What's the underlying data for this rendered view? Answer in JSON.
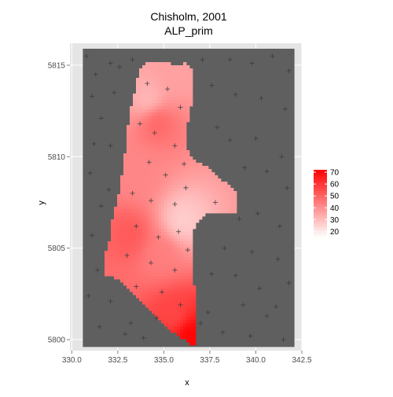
{
  "chart_data": {
    "type": "heatmap",
    "title": "Chisholm, 2001",
    "subtitle": "ALP_prim",
    "xlabel": "x",
    "ylabel": "y",
    "xlim": [
      329.9,
      342.5
    ],
    "ylim": [
      5799.4,
      5816.2
    ],
    "x_ticks": [
      {
        "value": 330.0,
        "label": "330.0"
      },
      {
        "value": 332.5,
        "label": "332.5"
      },
      {
        "value": 335.0,
        "label": "335.0"
      },
      {
        "value": 337.5,
        "label": "337.5"
      },
      {
        "value": 340.0,
        "label": "340.0"
      },
      {
        "value": 342.5,
        "label": "342.5"
      }
    ],
    "y_ticks": [
      {
        "value": 5800,
        "label": "5800"
      },
      {
        "value": 5805,
        "label": "5805"
      },
      {
        "value": 5810,
        "label": "5810"
      },
      {
        "value": 5815,
        "label": "5815"
      }
    ],
    "background_extent": {
      "x": [
        330.6,
        342.1
      ],
      "y": [
        5799.6,
        5815.9
      ]
    },
    "legend": {
      "position": "right",
      "scale_min": 15,
      "scale_max": 72,
      "ticks": [
        20,
        30,
        40,
        50,
        60,
        70
      ],
      "low_color": "#ffffff",
      "high_color": "#ff0000"
    },
    "colors": {
      "panel_background": "#5f5f5f",
      "grid": "#e5e5e5",
      "points": "#3a3a3a"
    },
    "region_outline": [
      [
        334.1,
        5815.2
      ],
      [
        334.6,
        5815.1
      ],
      [
        335.0,
        5815.2
      ],
      [
        335.5,
        5815.0
      ],
      [
        336.2,
        5815.1
      ],
      [
        336.6,
        5814.8
      ],
      [
        336.6,
        5813.5
      ],
      [
        336.4,
        5812.3
      ],
      [
        336.2,
        5811.3
      ],
      [
        336.3,
        5810.3
      ],
      [
        336.8,
        5809.7
      ],
      [
        337.3,
        5809.5
      ],
      [
        337.8,
        5809.0
      ],
      [
        338.3,
        5808.6
      ],
      [
        338.8,
        5808.3
      ],
      [
        339.0,
        5807.8
      ],
      [
        339.0,
        5807.0
      ],
      [
        338.2,
        5807.0
      ],
      [
        337.4,
        5806.9
      ],
      [
        336.9,
        5806.6
      ],
      [
        336.6,
        5806.0
      ],
      [
        336.5,
        5804.7
      ],
      [
        336.6,
        5803.6
      ],
      [
        336.7,
        5802.2
      ],
      [
        336.8,
        5800.5
      ],
      [
        336.7,
        5799.6
      ],
      [
        336.1,
        5800.0
      ],
      [
        335.5,
        5800.4
      ],
      [
        334.9,
        5801.0
      ],
      [
        334.2,
        5801.6
      ],
      [
        333.5,
        5802.4
      ],
      [
        332.8,
        5803.1
      ],
      [
        332.0,
        5803.5
      ],
      [
        331.7,
        5803.6
      ],
      [
        331.7,
        5804.5
      ],
      [
        332.0,
        5805.2
      ],
      [
        332.2,
        5806.5
      ],
      [
        332.6,
        5808.2
      ],
      [
        332.8,
        5809.6
      ],
      [
        333.0,
        5810.8
      ],
      [
        333.1,
        5812.2
      ],
      [
        333.4,
        5813.4
      ],
      [
        333.6,
        5814.4
      ],
      [
        333.8,
        5815.0
      ]
    ],
    "hotspots": [
      {
        "x": 336.4,
        "y": 5800.3,
        "value": 72
      },
      {
        "x": 335.6,
        "y": 5801.3,
        "value": 56
      },
      {
        "x": 333.2,
        "y": 5805.7,
        "value": 52
      },
      {
        "x": 334.6,
        "y": 5812.0,
        "value": 50
      },
      {
        "x": 334.8,
        "y": 5804.7,
        "value": 44
      },
      {
        "x": 333.6,
        "y": 5809.0,
        "value": 42
      },
      {
        "x": 336.0,
        "y": 5806.5,
        "value": 26
      },
      {
        "x": 334.2,
        "y": 5813.0,
        "value": 30
      },
      {
        "x": 335.8,
        "y": 5814.5,
        "value": 36
      }
    ],
    "base_value": 38,
    "sample_points": [
      [
        330.8,
        5815.5
      ],
      [
        331.3,
        5814.5
      ],
      [
        332.1,
        5815.1
      ],
      [
        332.6,
        5814.9
      ],
      [
        333.3,
        5815.3
      ],
      [
        337.1,
        5815.3
      ],
      [
        338.6,
        5815.3
      ],
      [
        339.8,
        5815.1
      ],
      [
        340.9,
        5815.5
      ],
      [
        341.8,
        5814.7
      ],
      [
        331.1,
        5813.3
      ],
      [
        332.3,
        5813.5
      ],
      [
        331.6,
        5812.1
      ],
      [
        337.6,
        5813.9
      ],
      [
        338.9,
        5813.4
      ],
      [
        340.3,
        5813.2
      ],
      [
        341.6,
        5812.6
      ],
      [
        331.2,
        5810.7
      ],
      [
        332.1,
        5810.6
      ],
      [
        337.9,
        5811.6
      ],
      [
        338.6,
        5810.9
      ],
      [
        340.0,
        5811.0
      ],
      [
        341.4,
        5810.0
      ],
      [
        331.0,
        5809.1
      ],
      [
        332.0,
        5808.2
      ],
      [
        339.4,
        5809.4
      ],
      [
        340.6,
        5809.2
      ],
      [
        341.7,
        5808.3
      ],
      [
        331.6,
        5807.3
      ],
      [
        339.1,
        5806.6
      ],
      [
        340.1,
        5806.9
      ],
      [
        341.3,
        5806.2
      ],
      [
        331.1,
        5805.7
      ],
      [
        338.3,
        5805.0
      ],
      [
        339.8,
        5804.8
      ],
      [
        341.2,
        5804.4
      ],
      [
        331.4,
        5803.8
      ],
      [
        337.6,
        5803.6
      ],
      [
        338.9,
        5803.5
      ],
      [
        340.2,
        5802.8
      ],
      [
        341.8,
        5803.1
      ],
      [
        330.9,
        5802.4
      ],
      [
        332.1,
        5802.1
      ],
      [
        337.4,
        5801.5
      ],
      [
        339.3,
        5801.9
      ],
      [
        340.6,
        5801.3
      ],
      [
        331.5,
        5800.7
      ],
      [
        332.9,
        5800.3
      ],
      [
        333.9,
        5800.1
      ],
      [
        338.2,
        5800.4
      ],
      [
        339.7,
        5800.2
      ],
      [
        341.5,
        5800.0
      ],
      [
        333.2,
        5800.9
      ],
      [
        337.0,
        5800.9
      ],
      [
        341.1,
        5801.8
      ],
      [
        334.1,
        5814.0
      ],
      [
        335.2,
        5813.7
      ],
      [
        335.9,
        5812.7
      ],
      [
        334.5,
        5811.3
      ],
      [
        335.6,
        5810.6
      ],
      [
        334.2,
        5809.7
      ],
      [
        335.1,
        5809.0
      ],
      [
        333.3,
        5808.0
      ],
      [
        334.3,
        5807.6
      ],
      [
        335.6,
        5807.4
      ],
      [
        336.2,
        5808.3
      ],
      [
        337.8,
        5807.5
      ],
      [
        333.5,
        5806.2
      ],
      [
        334.7,
        5805.6
      ],
      [
        335.8,
        5805.9
      ],
      [
        333.0,
        5804.6
      ],
      [
        334.3,
        5804.2
      ],
      [
        335.6,
        5803.8
      ],
      [
        333.5,
        5802.9
      ],
      [
        334.9,
        5802.6
      ],
      [
        335.9,
        5801.9
      ],
      [
        334.6,
        5801.2
      ],
      [
        336.3,
        5804.9
      ],
      [
        333.7,
        5811.8
      ],
      [
        336.1,
        5809.6
      ]
    ]
  }
}
